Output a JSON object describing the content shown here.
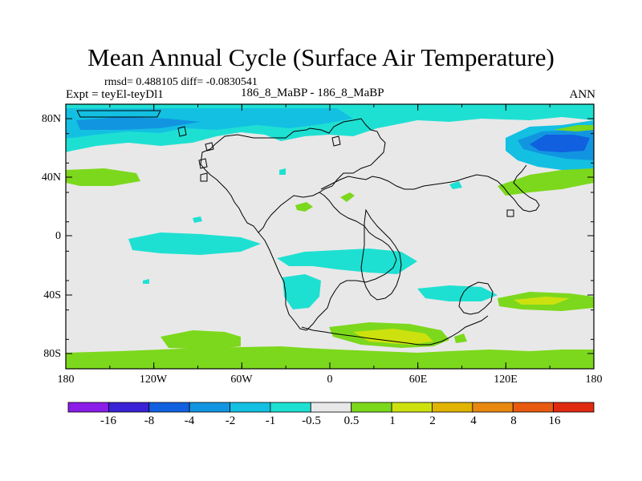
{
  "title": "Mean Annual Cycle (Surface Air Temperature)",
  "stats_line": "rmsd= 0.488105 diff= -0.0830541",
  "experiment": "Expt = teyEl-teyDl1",
  "case_label": "186_8_MaBP - 186_8_MaBP",
  "season": "ANN",
  "axes": {
    "y_ticks": [
      "80N",
      "40N",
      "0",
      "40S",
      "80S"
    ],
    "x_ticks": [
      "180",
      "120W",
      "60W",
      "0",
      "60E",
      "120E",
      "180"
    ]
  },
  "colorbar": {
    "labels": [
      "-16",
      "-8",
      "-4",
      "-2",
      "-1",
      "-0.5",
      "0.5",
      "1",
      "2",
      "4",
      "8",
      "16"
    ],
    "colors": [
      "#8a1de8",
      "#3a22d6",
      "#1160e0",
      "#1295e0",
      "#13c0e2",
      "#1ee0d2",
      "#e8e8e8",
      "#7cd81c",
      "#cde10f",
      "#e0b400",
      "#e88810",
      "#e85a10",
      "#e02a10"
    ]
  },
  "palette": {
    "neutral": "#e8e8e8",
    "cyan": "#1ee0d2",
    "sky": "#13c0e2",
    "blue": "#1295e0",
    "deep_blue": "#1160e0",
    "green": "#7cd81c",
    "yellow_green": "#cde10f"
  }
}
